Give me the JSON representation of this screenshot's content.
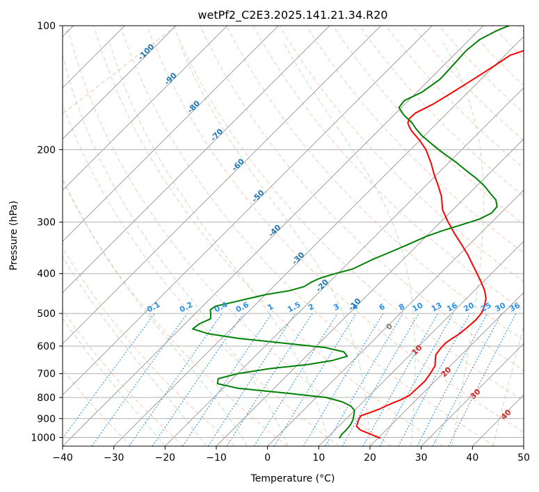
{
  "chart_data": {
    "type": "line",
    "title": "wetPf2_C2E3.2025.141.21.34.R20",
    "xlabel": "Temperature (°C)",
    "ylabel": "Pressure (hPa)",
    "xlim": [
      -40,
      50
    ],
    "ylim": [
      1050,
      100
    ],
    "y_scale": "log",
    "skew": "skew-T log-P",
    "grid": true,
    "x_ticks": [
      -40,
      -30,
      -20,
      -10,
      0,
      10,
      20,
      30,
      40,
      50
    ],
    "y_ticks": [
      100,
      200,
      300,
      400,
      500,
      600,
      700,
      800,
      900,
      1000
    ],
    "isotherm_labels": [
      "-100",
      "-90",
      "-80",
      "-70",
      "-60",
      "-50",
      "-40",
      "-30",
      "-20",
      "-10"
    ],
    "isotherm_values": [
      -100,
      -90,
      -80,
      -70,
      -60,
      -50,
      -40,
      -30,
      -20,
      -10
    ],
    "mixing_ratio_labels": [
      "0.1",
      "0.2",
      "0.4",
      "0.6",
      "1",
      "1.5",
      "2",
      "3",
      "4",
      "6",
      "8",
      "10",
      "13",
      "16",
      "20",
      "25",
      "30",
      "36"
    ],
    "mixing_ratio_values": [
      0.1,
      0.2,
      0.4,
      0.6,
      1,
      1.5,
      2,
      3,
      4,
      6,
      8,
      10,
      13,
      16,
      20,
      25,
      30,
      36
    ],
    "warm_isotherm_labels": [
      "0",
      "10",
      "20",
      "30",
      "40"
    ],
    "warm_isotherm_values": [
      0,
      10,
      20,
      30,
      40
    ],
    "series": [
      {
        "color": "#ff0000",
        "points": [
          [
            1005,
            20.5
          ],
          [
            980,
            17.5
          ],
          [
            960,
            15.0
          ],
          [
            940,
            13.5
          ],
          [
            920,
            13.0
          ],
          [
            900,
            12.5
          ],
          [
            885,
            12.3
          ],
          [
            870,
            13.5
          ],
          [
            855,
            14.5
          ],
          [
            840,
            15.2
          ],
          [
            825,
            16.0
          ],
          [
            810,
            17.0
          ],
          [
            790,
            17.8
          ],
          [
            760,
            17.9
          ],
          [
            730,
            18.0
          ],
          [
            700,
            17.6
          ],
          [
            670,
            17.0
          ],
          [
            650,
            16.0
          ],
          [
            630,
            15.0
          ],
          [
            610,
            14.7
          ],
          [
            590,
            14.6
          ],
          [
            575,
            15.0
          ],
          [
            560,
            15.5
          ],
          [
            540,
            15.8
          ],
          [
            520,
            16.0
          ],
          [
            500,
            15.8
          ],
          [
            480,
            15.0
          ],
          [
            460,
            13.8
          ],
          [
            440,
            12.0
          ],
          [
            420,
            9.7
          ],
          [
            400,
            7.2
          ],
          [
            380,
            4.5
          ],
          [
            360,
            1.7
          ],
          [
            340,
            -1.5
          ],
          [
            320,
            -5.0
          ],
          [
            300,
            -8.5
          ],
          [
            280,
            -12.0
          ],
          [
            260,
            -14.8
          ],
          [
            245,
            -17.5
          ],
          [
            230,
            -20.5
          ],
          [
            215,
            -23.5
          ],
          [
            200,
            -27.0
          ],
          [
            190,
            -30.0
          ],
          [
            180,
            -33.5
          ],
          [
            175,
            -35.0
          ],
          [
            172,
            -35.8
          ],
          [
            168,
            -36.3
          ],
          [
            163,
            -36.2
          ],
          [
            155,
            -34.5
          ],
          [
            145,
            -33.0
          ],
          [
            135,
            -31.5
          ],
          [
            125,
            -30.0
          ],
          [
            118,
            -29.0
          ],
          [
            112,
            -25.5
          ],
          [
            106,
            -20.5
          ],
          [
            102,
            -18.0
          ],
          [
            100,
            -16.5
          ]
        ]
      },
      {
        "color": "#008000",
        "points": [
          [
            1005,
            12.5
          ],
          [
            985,
            12.2
          ],
          [
            960,
            12.2
          ],
          [
            930,
            12.0
          ],
          [
            905,
            11.5
          ],
          [
            880,
            10.7
          ],
          [
            860,
            10.0
          ],
          [
            840,
            8.5
          ],
          [
            820,
            6.0
          ],
          [
            800,
            2.0
          ],
          [
            780,
            -7.0
          ],
          [
            760,
            -17.0
          ],
          [
            740,
            -22.0
          ],
          [
            720,
            -22.8
          ],
          [
            700,
            -20.0
          ],
          [
            680,
            -14.5
          ],
          [
            665,
            -8.0
          ],
          [
            650,
            -4.0
          ],
          [
            635,
            -2.0
          ],
          [
            620,
            -3.5
          ],
          [
            605,
            -8.0
          ],
          [
            590,
            -17.0
          ],
          [
            575,
            -26.5
          ],
          [
            560,
            -33.5
          ],
          [
            545,
            -37.5
          ],
          [
            530,
            -37.2
          ],
          [
            515,
            -36.0
          ],
          [
            500,
            -37.0
          ],
          [
            490,
            -37.8
          ],
          [
            480,
            -37.5
          ],
          [
            470,
            -35.0
          ],
          [
            460,
            -32.5
          ],
          [
            450,
            -30.0
          ],
          [
            440,
            -26.0
          ],
          [
            430,
            -24.0
          ],
          [
            420,
            -23.5
          ],
          [
            410,
            -22.5
          ],
          [
            400,
            -20.5
          ],
          [
            390,
            -18.0
          ],
          [
            380,
            -17.0
          ],
          [
            370,
            -16.0
          ],
          [
            355,
            -14.0
          ],
          [
            340,
            -12.0
          ],
          [
            325,
            -10.0
          ],
          [
            315,
            -8.0
          ],
          [
            305,
            -5.5
          ],
          [
            295,
            -3.0
          ],
          [
            285,
            -1.8
          ],
          [
            275,
            -2.0
          ],
          [
            265,
            -3.5
          ],
          [
            255,
            -6.0
          ],
          [
            245,
            -8.5
          ],
          [
            235,
            -11.5
          ],
          [
            225,
            -15.0
          ],
          [
            215,
            -18.5
          ],
          [
            205,
            -22.5
          ],
          [
            195,
            -26.5
          ],
          [
            185,
            -30.5
          ],
          [
            178,
            -33.0
          ],
          [
            172,
            -35.0
          ],
          [
            165,
            -38.0
          ],
          [
            158,
            -40.5
          ],
          [
            152,
            -40.8
          ],
          [
            145,
            -39.0
          ],
          [
            135,
            -38.0
          ],
          [
            125,
            -38.2
          ],
          [
            115,
            -38.5
          ],
          [
            108,
            -38.0
          ],
          [
            103,
            -36.5
          ],
          [
            100,
            -35.0
          ]
        ]
      }
    ]
  }
}
